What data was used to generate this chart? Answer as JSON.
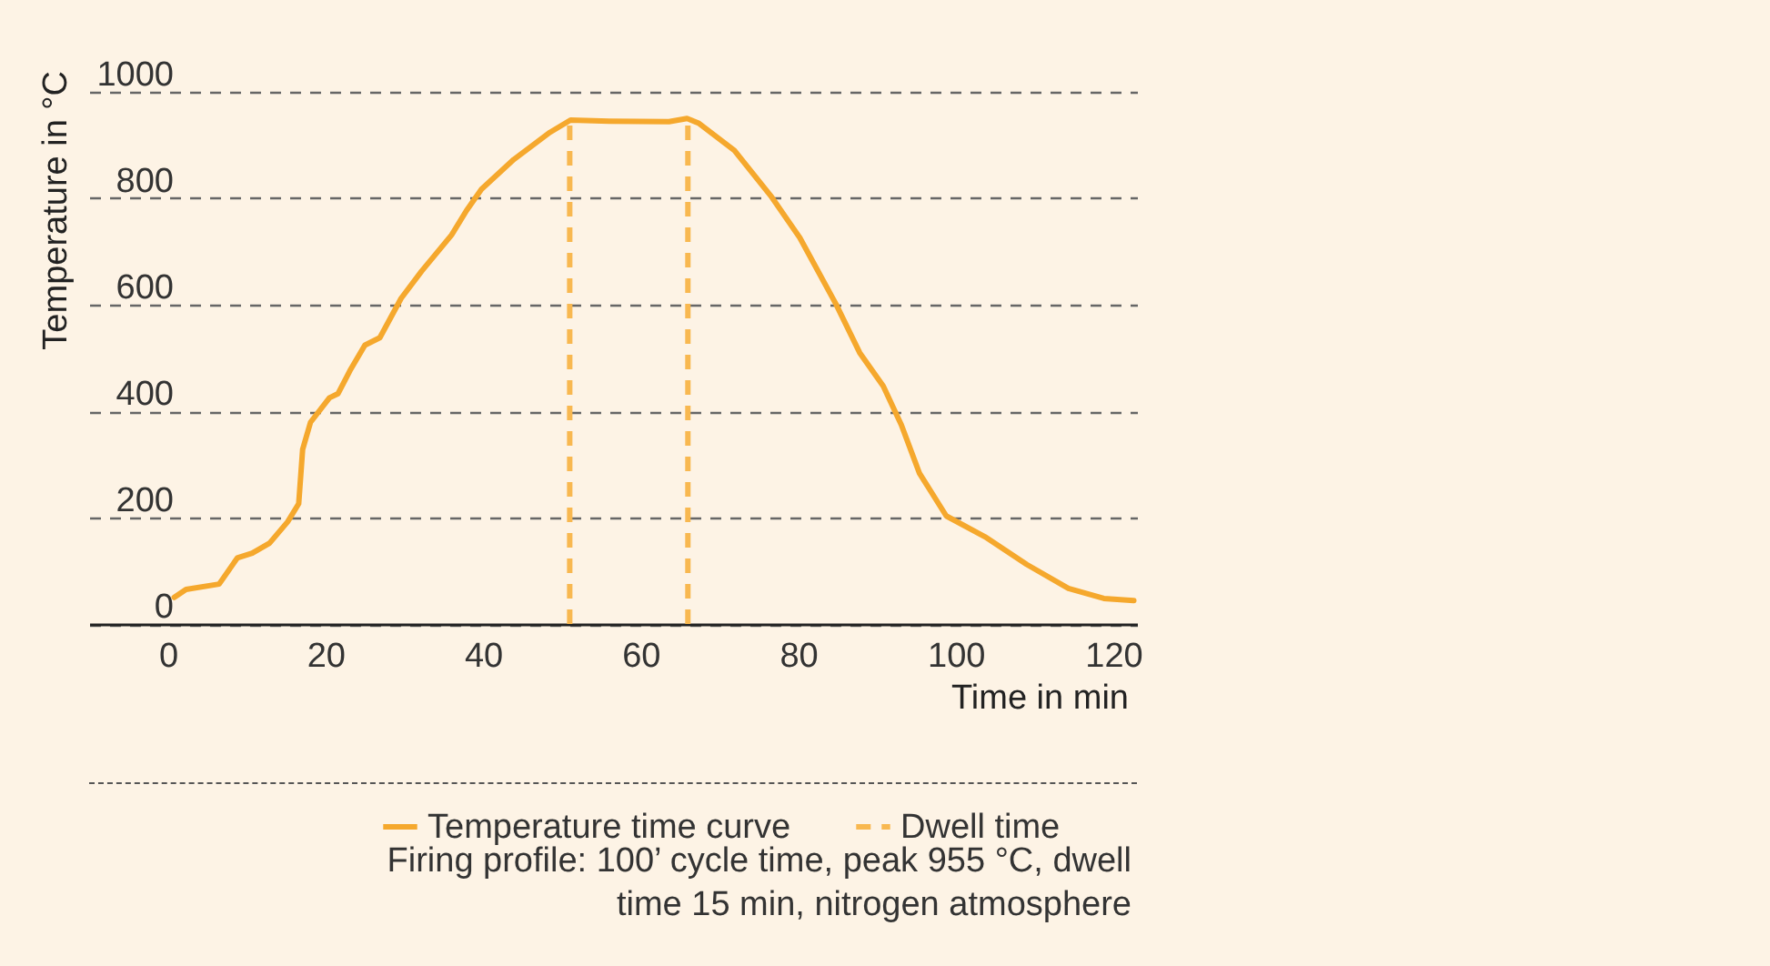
{
  "chart_data": {
    "type": "line",
    "xlabel": "Time in min",
    "ylabel": "Temperature in °C",
    "x": [
      0.8,
      2.3,
      6.5,
      8.8,
      10.7,
      12.9,
      15.2,
      16.6,
      17.1,
      18.1,
      20.5,
      21.6,
      23.1,
      25.0,
      26.9,
      29.6,
      32.2,
      36.0,
      37.9,
      39.8,
      43.9,
      48.5,
      51.1,
      56.0,
      63.6,
      65.9,
      67.4,
      71.9,
      76.5,
      80.2,
      84.8,
      87.8,
      90.8,
      93.1,
      95.4,
      98.8,
      103.7,
      109.0,
      114.3,
      118.8,
      122.6
    ],
    "series": [
      {
        "name": "Temperature time curve",
        "color": "#f5a82d",
        "line_style": "solid",
        "values": [
          50,
          65,
          75,
          124,
          133,
          152,
          192,
          226,
          328,
          379,
          425,
          433,
          476,
          524,
          538,
          612,
          663,
          731,
          777,
          817,
          873,
          924,
          947,
          945,
          944,
          950,
          941,
          890,
          805,
          726,
          601,
          510,
          447,
          374,
          283,
          203,
          164,
          112,
          67,
          48,
          44
        ]
      }
    ],
    "ref_lines": [
      {
        "axis": "x",
        "value": 51,
        "label": "Dwell time",
        "color": "#f8b850",
        "line_style": "dashed"
      },
      {
        "axis": "x",
        "value": 66,
        "color": "#f8b850",
        "line_style": "dashed"
      }
    ],
    "xlim": [
      -10,
      123
    ],
    "ylim": [
      0,
      1000
    ],
    "xticks": [
      0,
      20,
      40,
      60,
      80,
      100,
      120
    ],
    "yticks": [
      0,
      200,
      400,
      600,
      800,
      1000
    ],
    "grid": "y",
    "legend": "bottom",
    "annotations": [
      "Firing profile: 100’ cycle time, peak 955 °C, dwell time 15 min, nitrogen atmosphere"
    ]
  }
}
